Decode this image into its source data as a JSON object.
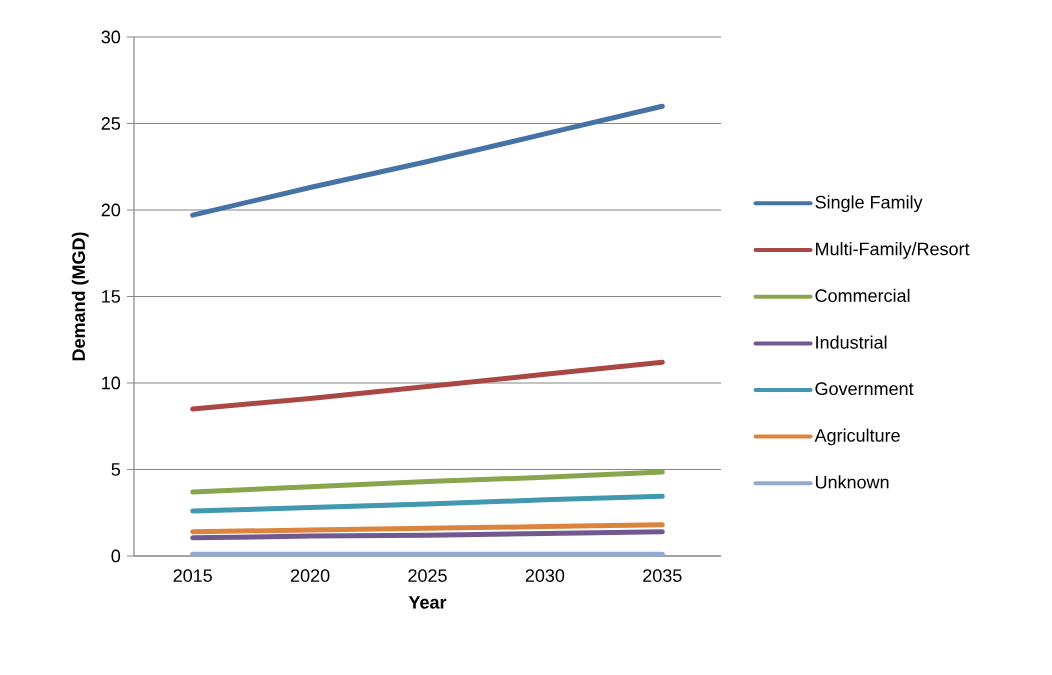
{
  "chart_data": {
    "type": "line",
    "xlabel": "Year",
    "ylabel": "Demand (MGD)",
    "categories": [
      "2015",
      "2020",
      "2025",
      "2030",
      "2035"
    ],
    "series": [
      {
        "name": "Single Family",
        "color": "#4572a7",
        "values": [
          19.7,
          21.3,
          22.8,
          24.4,
          26.0
        ]
      },
      {
        "name": "Multi-Family/Resort",
        "color": "#aa4643",
        "values": [
          8.5,
          9.1,
          9.8,
          10.5,
          11.2
        ]
      },
      {
        "name": "Commercial",
        "color": "#89a54e",
        "values": [
          3.7,
          4.0,
          4.3,
          4.55,
          4.85
        ]
      },
      {
        "name": "Industrial",
        "color": "#71588f",
        "values": [
          1.05,
          1.15,
          1.2,
          1.3,
          1.4
        ]
      },
      {
        "name": "Government",
        "color": "#4198af",
        "values": [
          2.6,
          2.8,
          3.0,
          3.25,
          3.45
        ]
      },
      {
        "name": "Agriculture",
        "color": "#db843d",
        "values": [
          1.4,
          1.5,
          1.6,
          1.7,
          1.8
        ]
      },
      {
        "name": "Unknown",
        "color": "#93a9cf",
        "values": [
          0.1,
          0.1,
          0.1,
          0.1,
          0.1
        ]
      }
    ],
    "ylim": [
      0,
      30
    ],
    "yticks": [
      0,
      5,
      10,
      15,
      20,
      25,
      30
    ],
    "grid": "y",
    "legend": "right",
    "marker": "none",
    "line_style": "solid"
  }
}
